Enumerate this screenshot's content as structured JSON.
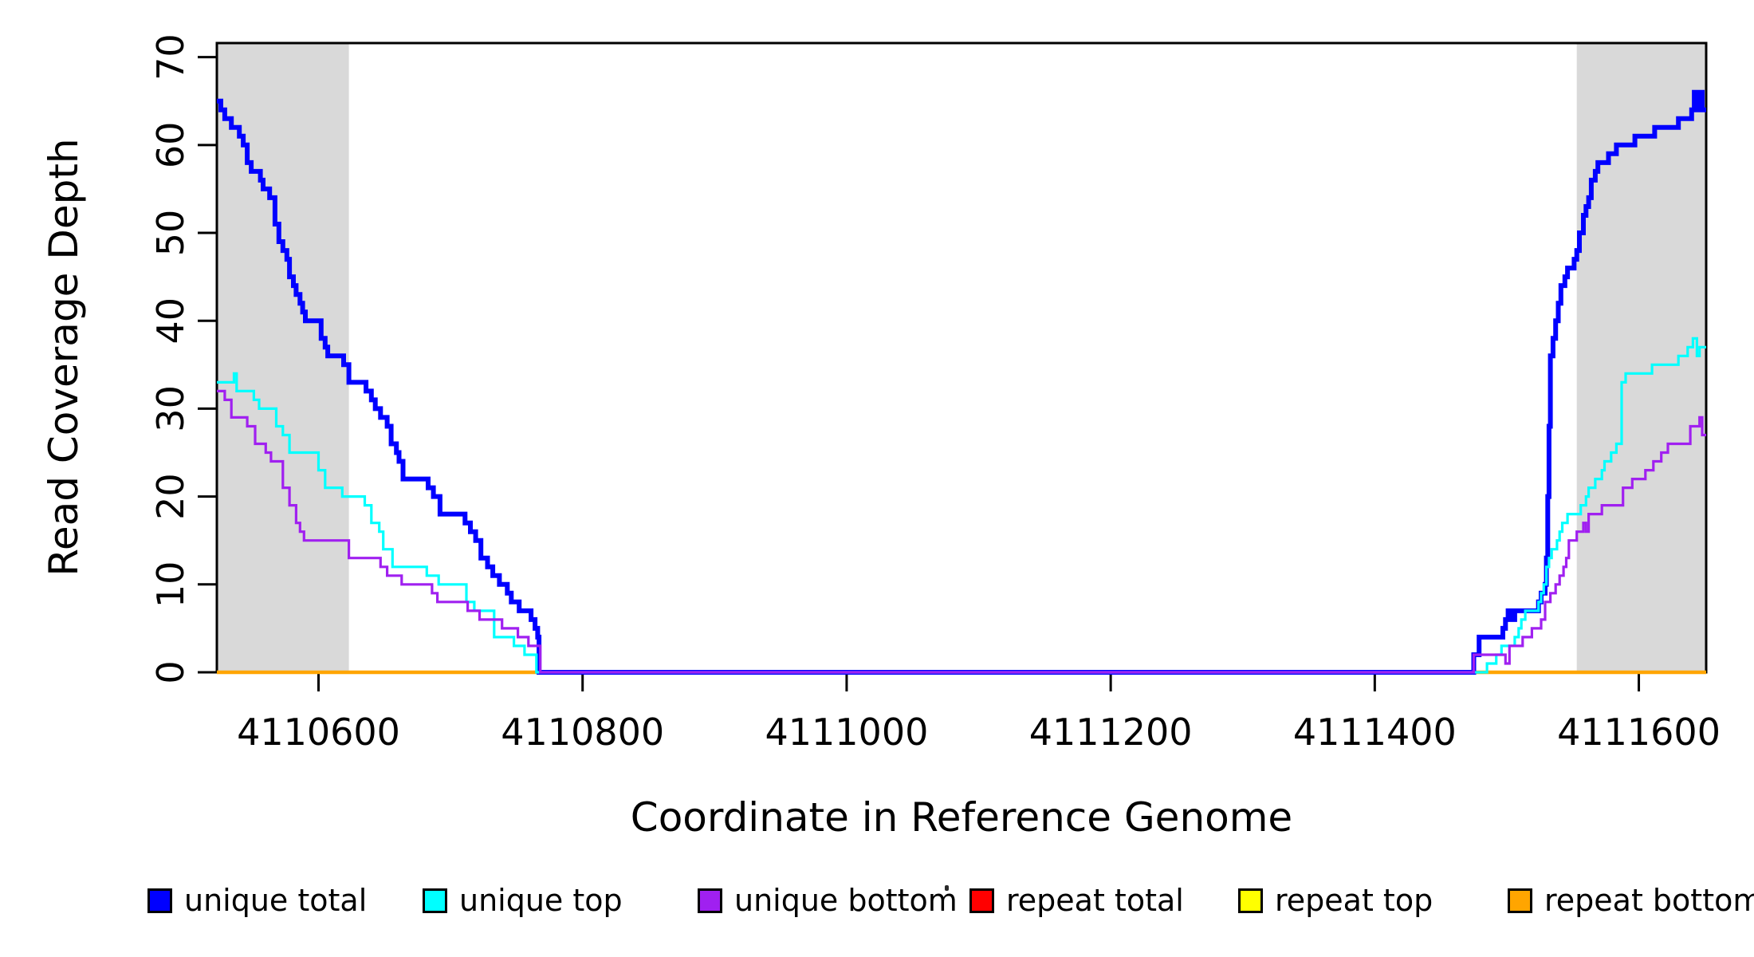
{
  "figure": {
    "background": "#FFFFFF"
  },
  "chart_data": {
    "type": "line",
    "subtype": "step",
    "title": "",
    "xlabel": "Coordinate in Reference Genome",
    "ylabel": "Read Coverage Depth",
    "xlim": [
      4110523,
      4111651
    ],
    "ylim": [
      0,
      71.6
    ],
    "x_ticks": [
      4110600,
      4110800,
      4111000,
      4111200,
      4111400,
      4111600
    ],
    "y_ticks": [
      0,
      10,
      20,
      30,
      40,
      50,
      60,
      70
    ],
    "grid": false,
    "legend_position": "bottom-horizontal",
    "plot_border_color": "#000000",
    "shaded_regions": [
      {
        "from": 4110523,
        "to": 4110623,
        "color": "#D9D9D9"
      },
      {
        "from": 4111553,
        "to": 4111651,
        "color": "#D9D9D9"
      }
    ],
    "draw_order": [
      3,
      4,
      5,
      0,
      1,
      2
    ],
    "series": [
      {
        "name": "unique total",
        "color": "#0000FF",
        "line_width": 6,
        "points": [
          [
            4110523,
            65
          ],
          [
            4110526,
            64
          ],
          [
            4110529,
            63
          ],
          [
            4110534,
            62
          ],
          [
            4110540,
            61
          ],
          [
            4110543,
            60
          ],
          [
            4110546,
            58
          ],
          [
            4110549,
            57
          ],
          [
            4110556,
            56
          ],
          [
            4110558,
            55
          ],
          [
            4110563,
            54
          ],
          [
            4110567,
            51
          ],
          [
            4110570,
            49
          ],
          [
            4110573,
            48
          ],
          [
            4110576,
            47
          ],
          [
            4110578,
            45
          ],
          [
            4110581,
            44
          ],
          [
            4110583,
            43
          ],
          [
            4110586,
            42
          ],
          [
            4110588,
            41
          ],
          [
            4110590,
            40
          ],
          [
            4110602,
            38
          ],
          [
            4110605,
            37
          ],
          [
            4110607,
            36
          ],
          [
            4110619,
            35
          ],
          [
            4110623,
            33
          ],
          [
            4110636,
            32
          ],
          [
            4110640,
            31
          ],
          [
            4110643,
            30
          ],
          [
            4110647,
            29
          ],
          [
            4110652,
            28
          ],
          [
            4110655,
            26
          ],
          [
            4110659,
            25
          ],
          [
            4110661,
            24
          ],
          [
            4110664,
            22
          ],
          [
            4110683,
            21
          ],
          [
            4110687,
            20
          ],
          [
            4110692,
            18
          ],
          [
            4110711,
            17
          ],
          [
            4110715,
            16
          ],
          [
            4110719,
            15
          ],
          [
            4110723,
            13
          ],
          [
            4110728,
            12
          ],
          [
            4110732,
            11
          ],
          [
            4110737,
            10
          ],
          [
            4110743,
            9
          ],
          [
            4110746,
            8
          ],
          [
            4110752,
            7
          ],
          [
            4110761,
            6
          ],
          [
            4110764,
            5
          ],
          [
            4110766,
            4
          ],
          [
            4110767,
            0
          ],
          [
            4111475,
            2
          ],
          [
            4111479,
            4
          ],
          [
            4111497,
            5
          ],
          [
            4111499,
            6
          ],
          [
            4111501,
            7
          ],
          [
            4111504,
            6
          ],
          [
            4111506,
            7
          ],
          [
            4111524,
            8
          ],
          [
            4111526,
            9
          ],
          [
            4111529,
            10
          ],
          [
            4111530,
            13
          ],
          [
            4111531,
            20
          ],
          [
            4111532,
            28
          ],
          [
            4111533,
            36
          ],
          [
            4111535,
            38
          ],
          [
            4111537,
            40
          ],
          [
            4111539,
            42
          ],
          [
            4111541,
            44
          ],
          [
            4111544,
            45
          ],
          [
            4111546,
            46
          ],
          [
            4111551,
            47
          ],
          [
            4111553,
            48
          ],
          [
            4111555,
            50
          ],
          [
            4111558,
            52
          ],
          [
            4111560,
            53
          ],
          [
            4111562,
            54
          ],
          [
            4111564,
            56
          ],
          [
            4111567,
            57
          ],
          [
            4111569,
            58
          ],
          [
            4111577,
            59
          ],
          [
            4111583,
            60
          ],
          [
            4111597,
            61
          ],
          [
            4111612,
            62
          ],
          [
            4111630,
            63
          ],
          [
            4111640,
            64
          ],
          [
            4111642,
            66
          ],
          [
            4111644,
            64
          ],
          [
            4111646,
            66
          ],
          [
            4111648,
            64
          ]
        ]
      },
      {
        "name": "unique top",
        "color": "#00FFFF",
        "line_width": 3.2,
        "points": [
          [
            4110523,
            33
          ],
          [
            4110536,
            34
          ],
          [
            4110538,
            32
          ],
          [
            4110551,
            31
          ],
          [
            4110555,
            30
          ],
          [
            4110568,
            28
          ],
          [
            4110573,
            27
          ],
          [
            4110578,
            25
          ],
          [
            4110600,
            23
          ],
          [
            4110605,
            21
          ],
          [
            4110618,
            20
          ],
          [
            4110635,
            19
          ],
          [
            4110640,
            17
          ],
          [
            4110646,
            16
          ],
          [
            4110649,
            14
          ],
          [
            4110656,
            12
          ],
          [
            4110682,
            11
          ],
          [
            4110691,
            10
          ],
          [
            4110712,
            8
          ],
          [
            4110718,
            7
          ],
          [
            4110733,
            4
          ],
          [
            4110748,
            3
          ],
          [
            4110756,
            2
          ],
          [
            4110765,
            0
          ],
          [
            4111485,
            1
          ],
          [
            4111492,
            2
          ],
          [
            4111496,
            3
          ],
          [
            4111506,
            4
          ],
          [
            4111509,
            5
          ],
          [
            4111511,
            6
          ],
          [
            4111514,
            7
          ],
          [
            4111524,
            8
          ],
          [
            4111526,
            9
          ],
          [
            4111528,
            10
          ],
          [
            4111530,
            12
          ],
          [
            4111532,
            13
          ],
          [
            4111534,
            14
          ],
          [
            4111538,
            15
          ],
          [
            4111540,
            16
          ],
          [
            4111542,
            17
          ],
          [
            4111546,
            18
          ],
          [
            4111556,
            19
          ],
          [
            4111560,
            20
          ],
          [
            4111562,
            21
          ],
          [
            4111567,
            22
          ],
          [
            4111572,
            23
          ],
          [
            4111574,
            24
          ],
          [
            4111579,
            25
          ],
          [
            4111583,
            26
          ],
          [
            4111587,
            33
          ],
          [
            4111590,
            34
          ],
          [
            4111610,
            35
          ],
          [
            4111630,
            36
          ],
          [
            4111637,
            37
          ],
          [
            4111641,
            38
          ],
          [
            4111644,
            36
          ],
          [
            4111646,
            37
          ]
        ]
      },
      {
        "name": "unique bottom",
        "color": "#A020F0",
        "line_width": 3.2,
        "points": [
          [
            4110523,
            32
          ],
          [
            4110529,
            31
          ],
          [
            4110534,
            29
          ],
          [
            4110546,
            28
          ],
          [
            4110552,
            26
          ],
          [
            4110560,
            25
          ],
          [
            4110564,
            24
          ],
          [
            4110573,
            21
          ],
          [
            4110578,
            19
          ],
          [
            4110583,
            17
          ],
          [
            4110586,
            16
          ],
          [
            4110589,
            15
          ],
          [
            4110623,
            13
          ],
          [
            4110647,
            12
          ],
          [
            4110652,
            11
          ],
          [
            4110663,
            10
          ],
          [
            4110686,
            9
          ],
          [
            4110690,
            8
          ],
          [
            4110713,
            7
          ],
          [
            4110722,
            6
          ],
          [
            4110739,
            5
          ],
          [
            4110751,
            4
          ],
          [
            4110759,
            3
          ],
          [
            4110768,
            0
          ],
          [
            4111475,
            2
          ],
          [
            4111499,
            1
          ],
          [
            4111502,
            3
          ],
          [
            4111512,
            4
          ],
          [
            4111519,
            5
          ],
          [
            4111526,
            6
          ],
          [
            4111529,
            8
          ],
          [
            4111533,
            9
          ],
          [
            4111537,
            10
          ],
          [
            4111540,
            11
          ],
          [
            4111543,
            12
          ],
          [
            4111545,
            13
          ],
          [
            4111547,
            15
          ],
          [
            4111553,
            16
          ],
          [
            4111558,
            17
          ],
          [
            4111560,
            16
          ],
          [
            4111562,
            18
          ],
          [
            4111572,
            19
          ],
          [
            4111588,
            21
          ],
          [
            4111595,
            22
          ],
          [
            4111605,
            23
          ],
          [
            4111611,
            24
          ],
          [
            4111617,
            25
          ],
          [
            4111622,
            26
          ],
          [
            4111639,
            28
          ],
          [
            4111646,
            29
          ],
          [
            4111648,
            27
          ]
        ]
      },
      {
        "name": "repeat total",
        "color": "#FF0000",
        "line_width": 3,
        "points": [
          [
            4110523,
            0
          ]
        ]
      },
      {
        "name": "repeat top",
        "color": "#FFFF00",
        "line_width": 3,
        "points": [
          [
            4110523,
            0
          ]
        ]
      },
      {
        "name": "repeat bottom",
        "color": "#FFA500",
        "line_width": 4.5,
        "points": [
          [
            4110523,
            0
          ]
        ]
      }
    ]
  }
}
